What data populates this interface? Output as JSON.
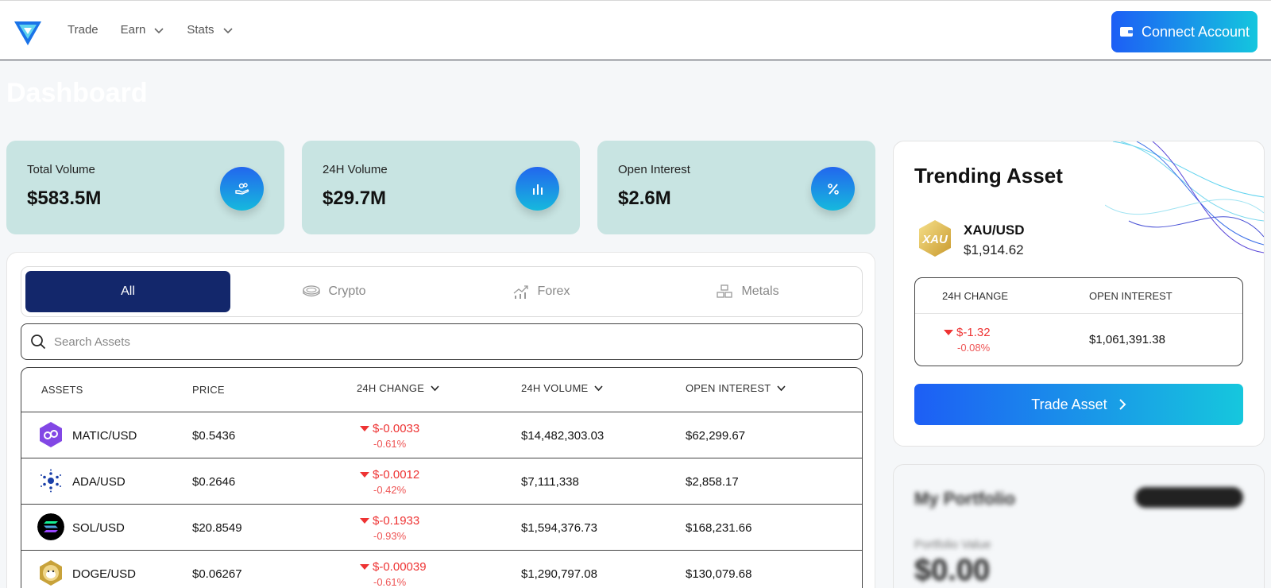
{
  "nav": {
    "items": [
      {
        "label": "Trade",
        "has_dropdown": false
      },
      {
        "label": "Earn",
        "has_dropdown": true
      },
      {
        "label": "Stats",
        "has_dropdown": true
      }
    ],
    "connect_label": "Connect Account"
  },
  "page": {
    "title": "Dashboard"
  },
  "stats": [
    {
      "label": "Total Volume",
      "value": "$583.5M",
      "icon": "hand-coins-icon"
    },
    {
      "label": "24H Volume",
      "value": "$29.7M",
      "icon": "bar-chart-icon"
    },
    {
      "label": "Open Interest",
      "value": "$2.6M",
      "icon": "percent-icon"
    }
  ],
  "tabs": [
    {
      "label": "All",
      "icon": null,
      "active": true
    },
    {
      "label": "Crypto",
      "icon": "coins-icon",
      "active": false
    },
    {
      "label": "Forex",
      "icon": "trend-chart-icon",
      "active": false
    },
    {
      "label": "Metals",
      "icon": "gold-bars-icon",
      "active": false
    }
  ],
  "search": {
    "placeholder": "Search Assets"
  },
  "table": {
    "headers": {
      "assets": "ASSETS",
      "price": "PRICE",
      "change": "24H CHANGE",
      "volume": "24H VOLUME",
      "open_interest": "OPEN INTEREST"
    },
    "rows": [
      {
        "asset": "MATIC/USD",
        "price": "$0.5436",
        "change": "$-0.0033",
        "change_pct": "-0.61%",
        "volume": "$14,482,303.03",
        "open_interest": "$62,299.67"
      },
      {
        "asset": "ADA/USD",
        "price": "$0.2646",
        "change": "$-0.0012",
        "change_pct": "-0.42%",
        "volume": "$7,111,338",
        "open_interest": "$2,858.17"
      },
      {
        "asset": "SOL/USD",
        "price": "$20.8549",
        "change": "$-0.1933",
        "change_pct": "-0.93%",
        "volume": "$1,594,376.73",
        "open_interest": "$168,231.66"
      },
      {
        "asset": "DOGE/USD",
        "price": "$0.06267",
        "change": "$-0.00039",
        "change_pct": "-0.61%",
        "volume": "$1,290,797.08",
        "open_interest": "$130,079.68"
      }
    ]
  },
  "trending": {
    "title": "Trending Asset",
    "badge": "XAU",
    "pair": "XAU/USD",
    "price": "$1,914.62",
    "change_header": "24H CHANGE",
    "oi_header": "OPEN INTEREST",
    "change": "$-1.32",
    "change_pct": "-0.08%",
    "open_interest": "$1,061,391.38",
    "button_label": "Trade Asset"
  },
  "portfolio": {
    "title": "My Portfolio",
    "value_label": "Portfolio Value",
    "value": "$0.00"
  },
  "colors": {
    "accent_start": "#1d5ef5",
    "accent_end": "#14c6de",
    "negative": "#e33333",
    "tab_active": "#13276b",
    "stat_card": "#c8e4e2"
  }
}
